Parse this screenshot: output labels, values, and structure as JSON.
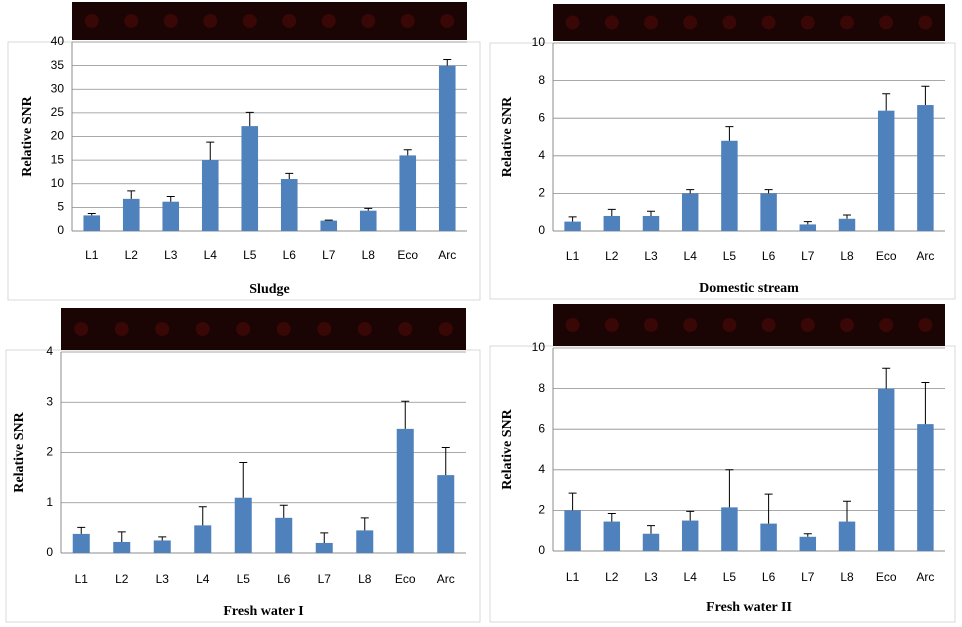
{
  "chart_data": [
    {
      "type": "bar",
      "xlabel": "Sludge",
      "ylabel": "Relative SNR",
      "categories": [
        "L1",
        "L2",
        "L3",
        "L4",
        "L5",
        "L6",
        "L7",
        "L8",
        "Eco",
        "Arc"
      ],
      "values": [
        3.3,
        6.8,
        6.2,
        15,
        22.2,
        11,
        2.2,
        4.3,
        16,
        35
      ],
      "errors": [
        0.4,
        1.7,
        1.1,
        3.8,
        2.9,
        1.2,
        0.1,
        0.5,
        1.2,
        1.3
      ],
      "ylim": [
        0,
        40
      ],
      "yticks": [
        0,
        5,
        10,
        15,
        20,
        25,
        30,
        35,
        40
      ],
      "color": "#4f81bd",
      "grid": true
    },
    {
      "type": "bar",
      "xlabel": "Domestic stream",
      "ylabel": "Relative SNR",
      "categories": [
        "L1",
        "L2",
        "L3",
        "L4",
        "L5",
        "L6",
        "L7",
        "L8",
        "Eco",
        "Arc"
      ],
      "values": [
        0.5,
        0.8,
        0.8,
        2.0,
        4.8,
        2.0,
        0.35,
        0.65,
        6.4,
        6.7
      ],
      "errors": [
        0.25,
        0.35,
        0.25,
        0.2,
        0.75,
        0.2,
        0.15,
        0.2,
        0.9,
        1.0
      ],
      "ylim": [
        0,
        10
      ],
      "yticks": [
        0,
        2,
        4,
        6,
        8,
        10
      ],
      "color": "#4f81bd",
      "grid": true
    },
    {
      "type": "bar",
      "xlabel": "Fresh water I",
      "ylabel": "Relative SNR",
      "categories": [
        "L1",
        "L2",
        "L3",
        "L4",
        "L5",
        "L6",
        "L7",
        "L8",
        "Eco",
        "Arc"
      ],
      "values": [
        0.38,
        0.22,
        0.25,
        0.55,
        1.1,
        0.7,
        0.2,
        0.45,
        2.47,
        1.55
      ],
      "errors": [
        0.13,
        0.2,
        0.07,
        0.37,
        0.7,
        0.25,
        0.2,
        0.25,
        0.55,
        0.55
      ],
      "ylim": [
        0,
        4
      ],
      "yticks": [
        0,
        1,
        2,
        3,
        4
      ],
      "color": "#4f81bd",
      "grid": true
    },
    {
      "type": "bar",
      "xlabel": "Fresh water II",
      "ylabel": "Relative SNR",
      "categories": [
        "L1",
        "L2",
        "L3",
        "L4",
        "L5",
        "L6",
        "L7",
        "L8",
        "Eco",
        "Arc"
      ],
      "values": [
        2.0,
        1.45,
        0.85,
        1.5,
        2.15,
        1.35,
        0.7,
        1.45,
        8.0,
        6.25
      ],
      "errors": [
        0.85,
        0.4,
        0.4,
        0.45,
        1.85,
        1.45,
        0.15,
        1.0,
        1.0,
        2.05
      ],
      "ylim": [
        0,
        10
      ],
      "yticks": [
        0,
        2,
        4,
        6,
        8,
        10
      ],
      "color": "#4f81bd",
      "grid": true
    }
  ]
}
